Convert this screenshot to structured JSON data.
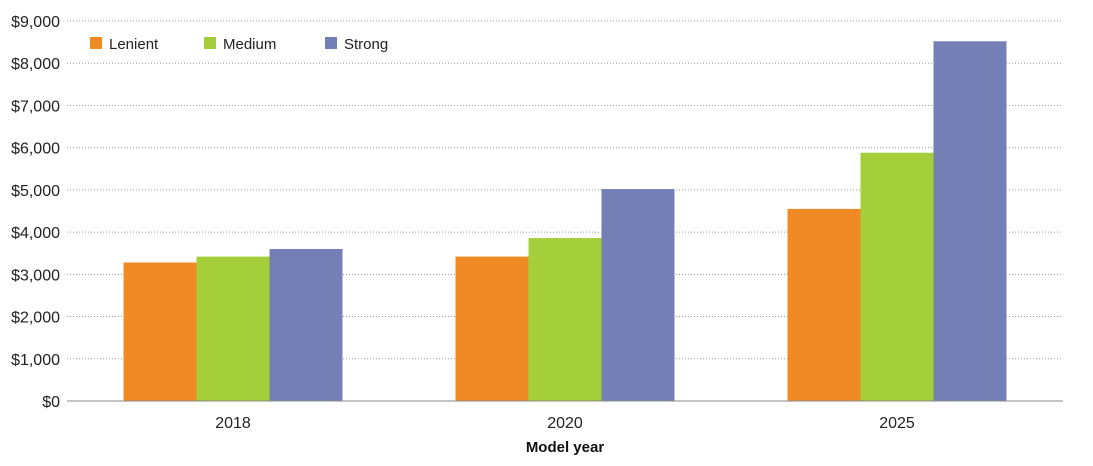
{
  "chart_data": {
    "type": "bar",
    "title": "",
    "xlabel": "Model year",
    "ylabel": "",
    "categories": [
      "2018",
      "2020",
      "2025"
    ],
    "series": [
      {
        "name": "Lenient",
        "values": [
          3280,
          3420,
          4550
        ],
        "color": "#f08a24"
      },
      {
        "name": "Medium",
        "values": [
          3420,
          3860,
          5880
        ],
        "color": "#a4ce3a"
      },
      {
        "name": "Strong",
        "values": [
          3600,
          5020,
          8520
        ],
        "color": "#737fb5"
      }
    ],
    "ylim": [
      0,
      9000
    ],
    "yticks": [
      0,
      1000,
      2000,
      3000,
      4000,
      5000,
      6000,
      7000,
      8000,
      9000
    ],
    "ytick_labels": [
      "$0",
      "$1,000",
      "$2,000",
      "$3,000",
      "$4,000",
      "$5,000",
      "$6,000",
      "$7,000",
      "$8,000",
      "$9,000"
    ],
    "grid": "horizontal dotted",
    "legend_position": "top-left"
  }
}
